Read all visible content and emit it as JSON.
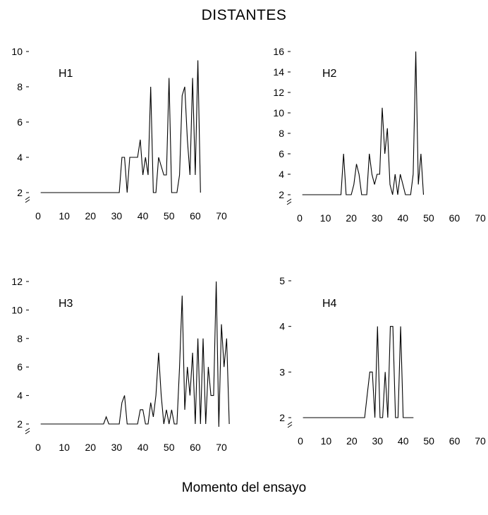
{
  "title": "DISTANTES",
  "xlabel": "Momento del ensayo",
  "chart_data": [
    {
      "type": "line",
      "panel_label": "H1",
      "xlim": [
        0,
        73
      ],
      "ylim": [
        2,
        10
      ],
      "xticks": [
        0,
        10,
        20,
        30,
        40,
        50,
        60,
        70
      ],
      "yticks": [
        2,
        4,
        6,
        8,
        10
      ],
      "axis_break": true,
      "series": [
        {
          "x": [
            1,
            31,
            32,
            33,
            34,
            35,
            36,
            37,
            38,
            39,
            40,
            41,
            42,
            43,
            44,
            45,
            46,
            47,
            48,
            49,
            50,
            51,
            52,
            53,
            54,
            55,
            56,
            57,
            58,
            59,
            60,
            61,
            62
          ],
          "values": [
            2,
            2,
            4,
            4,
            2,
            4,
            4,
            4,
            4,
            5,
            3,
            4,
            3,
            8,
            2,
            2,
            4,
            3.5,
            3,
            3,
            8.5,
            2,
            2,
            2,
            3,
            7.5,
            8,
            5,
            3,
            8.5,
            3,
            9.5,
            2
          ]
        }
      ]
    },
    {
      "type": "line",
      "panel_label": "H2",
      "xlim": [
        0,
        73
      ],
      "ylim": [
        2,
        16
      ],
      "xticks": [
        0,
        10,
        20,
        30,
        40,
        50,
        60,
        70
      ],
      "yticks": [
        2,
        4,
        6,
        8,
        10,
        12,
        14,
        16
      ],
      "axis_break": true,
      "series": [
        {
          "x": [
            1,
            16,
            17,
            18,
            19,
            20,
            21,
            22,
            23,
            24,
            25,
            26,
            27,
            28,
            29,
            30,
            31,
            32,
            33,
            34,
            35,
            36,
            37,
            38,
            39,
            40,
            41,
            42,
            43,
            44,
            45,
            46,
            47,
            48
          ],
          "values": [
            2,
            2,
            6,
            2,
            2,
            2,
            3,
            5,
            4,
            2,
            2,
            2,
            6,
            4,
            3,
            4,
            4,
            10.5,
            6,
            8.5,
            3,
            2,
            4,
            2,
            4,
            3,
            2,
            2,
            2,
            4,
            16,
            3,
            6,
            2
          ]
        }
      ]
    },
    {
      "type": "line",
      "panel_label": "H3",
      "xlim": [
        0,
        73
      ],
      "ylim": [
        2,
        12
      ],
      "xticks": [
        0,
        10,
        20,
        30,
        40,
        50,
        60,
        70
      ],
      "yticks": [
        2,
        4,
        6,
        8,
        10,
        12
      ],
      "axis_break": true,
      "series": [
        {
          "x": [
            1,
            25,
            26,
            27,
            28,
            29,
            30,
            31,
            32,
            33,
            34,
            35,
            36,
            37,
            38,
            39,
            40,
            41,
            42,
            43,
            44,
            45,
            46,
            47,
            48,
            49,
            50,
            51,
            52,
            53,
            54,
            55,
            56,
            57,
            58,
            59,
            60,
            61,
            62,
            63,
            64,
            65,
            66,
            67,
            68,
            69,
            70,
            71,
            72,
            73
          ],
          "values": [
            2,
            2,
            2.5,
            2,
            2,
            2,
            2,
            2,
            3.5,
            4,
            2,
            2,
            2,
            2,
            2,
            3,
            3,
            2,
            2,
            3.5,
            2.5,
            4,
            7,
            4,
            2,
            3,
            2,
            3,
            2,
            2,
            6,
            11,
            3,
            6,
            4,
            7,
            2,
            8,
            2,
            8,
            2,
            6,
            4,
            4,
            12,
            1.8,
            9,
            6,
            8,
            2
          ]
        }
      ]
    },
    {
      "type": "line",
      "panel_label": "H4",
      "xlim": [
        0,
        73
      ],
      "ylim": [
        2,
        5
      ],
      "xticks": [
        0,
        10,
        20,
        30,
        40,
        50,
        60,
        70
      ],
      "yticks": [
        2,
        3,
        4,
        5
      ],
      "axis_break": true,
      "series": [
        {
          "x": [
            1,
            25,
            26,
            27,
            28,
            29,
            30,
            31,
            32,
            33,
            34,
            35,
            36,
            37,
            38,
            39,
            40,
            41,
            42,
            43,
            44
          ],
          "values": [
            2,
            2,
            2.5,
            3,
            3,
            2,
            4,
            2,
            2,
            3,
            2,
            4,
            4,
            2,
            2,
            4,
            2,
            2,
            2,
            2,
            2
          ]
        }
      ]
    }
  ]
}
